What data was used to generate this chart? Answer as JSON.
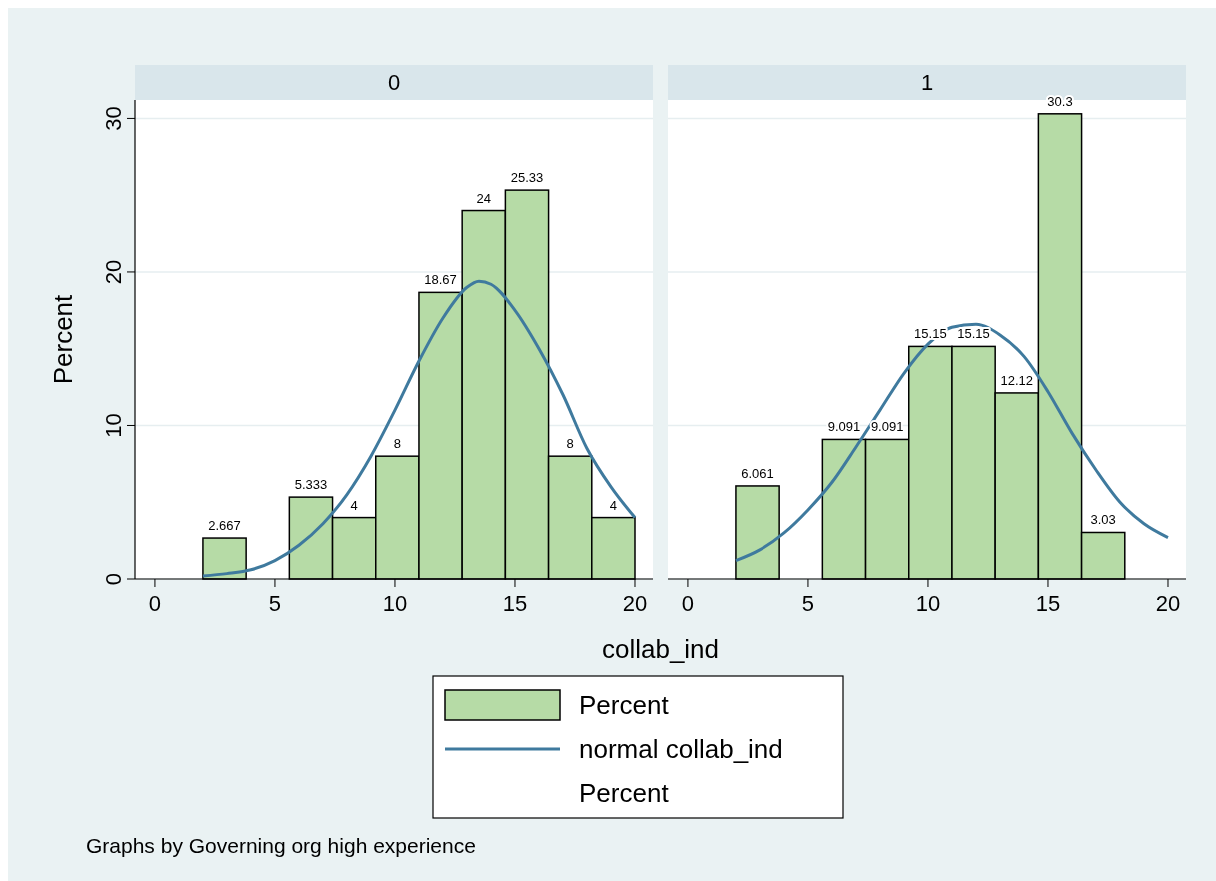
{
  "chart_data": [
    {
      "type": "histogram",
      "title": "0",
      "xlabel": "collab_ind",
      "ylabel": "Percent",
      "bins": [
        2,
        3.8,
        5.6,
        7.4,
        9.2,
        11,
        12.8,
        14.6,
        16.4,
        18.2,
        20
      ],
      "xlim": [
        -0.83,
        20.75
      ],
      "xticks": [
        0,
        5,
        10,
        15,
        20
      ],
      "ylim": [
        0,
        31.2
      ],
      "yticks": [
        0,
        10,
        20,
        30
      ],
      "grid": "y",
      "legend": "bottom",
      "annotations": [
        "Percent",
        "Graphs by Governing org high experience"
      ],
      "series": [
        {
          "name": "Percent",
          "color": "#b6dba6",
          "values": [
            2.667,
            0,
            5.333,
            4,
            8,
            18.67,
            24,
            25.33,
            8,
            4
          ],
          "value_labels": [
            "2.667",
            null,
            "5.333",
            "4",
            "8",
            "18.67",
            "24",
            "25.33",
            "8",
            "4"
          ]
        },
        {
          "name": "normal collab_ind",
          "type": "line",
          "color": "#3f7a9e",
          "x": [
            2,
            3,
            4,
            5,
            6,
            7,
            8,
            9,
            10,
            11,
            12,
            13,
            13.5,
            14,
            15,
            16,
            17,
            18,
            19,
            20
          ],
          "values": [
            0.2,
            0.35,
            0.6,
            1.2,
            2.2,
            3.6,
            5.5,
            8,
            11,
            14.2,
            17,
            19,
            19.4,
            19.2,
            17.5,
            15,
            12,
            8.5,
            6,
            4
          ]
        }
      ]
    },
    {
      "type": "histogram",
      "title": "1",
      "bins": [
        2,
        3.8,
        5.6,
        7.4,
        9.2,
        11,
        12.8,
        14.6,
        16.4,
        18.2,
        20
      ],
      "xlim": [
        -0.83,
        20.75
      ],
      "xticks": [
        0,
        5,
        10,
        15,
        20
      ],
      "ylim": [
        0,
        31.2
      ],
      "yticks": [
        0,
        10,
        20,
        30
      ],
      "grid": "y",
      "tick_labels": "x",
      "series": [
        {
          "color": "#b6dba6",
          "values": [
            6.061,
            0,
            9.091,
            9.091,
            15.15,
            15.15,
            12.12,
            30.3,
            3.03,
            0
          ],
          "value_labels": [
            "6.061",
            null,
            "9.091",
            "9.091",
            "15.15",
            "15.15",
            "12.12",
            "30.3",
            "3.03",
            null
          ]
        },
        {
          "type": "line",
          "color": "#3f7a9e",
          "x": [
            2,
            3,
            4,
            5,
            6,
            7,
            8,
            9,
            10,
            11,
            12,
            13,
            14,
            15,
            16,
            17,
            18,
            19,
            20
          ],
          "values": [
            1.2,
            1.9,
            3,
            4.5,
            6.3,
            8.6,
            11,
            13.4,
            15.3,
            16.4,
            16.6,
            15.9,
            14.5,
            12.2,
            9.5,
            7.1,
            5,
            3.6,
            2.7
          ]
        }
      ]
    }
  ]
}
